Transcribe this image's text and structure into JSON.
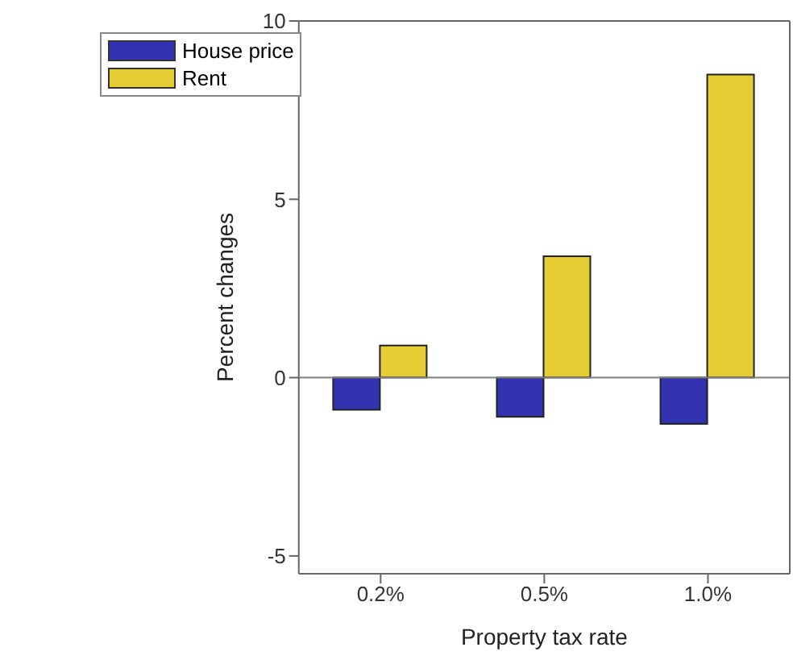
{
  "chart_data": {
    "type": "bar",
    "xlabel": "Property tax rate",
    "ylabel": "Percent changes",
    "categories": [
      "0.2%",
      "0.5%",
      "1.0%"
    ],
    "series": [
      {
        "name": "House price",
        "color": "#3333b2",
        "values": [
          -0.9,
          -1.1,
          -1.3
        ]
      },
      {
        "name": "Rent",
        "color": "#e5cc33",
        "values": [
          0.9,
          3.4,
          8.5
        ]
      }
    ],
    "ylim": [
      -5.5,
      10
    ],
    "yticks": [
      -5,
      0,
      5,
      10
    ],
    "grid": false,
    "legend": "top left",
    "ref_lines": [
      {
        "axis": "y",
        "value": 0,
        "color": "#808080"
      }
    ]
  }
}
